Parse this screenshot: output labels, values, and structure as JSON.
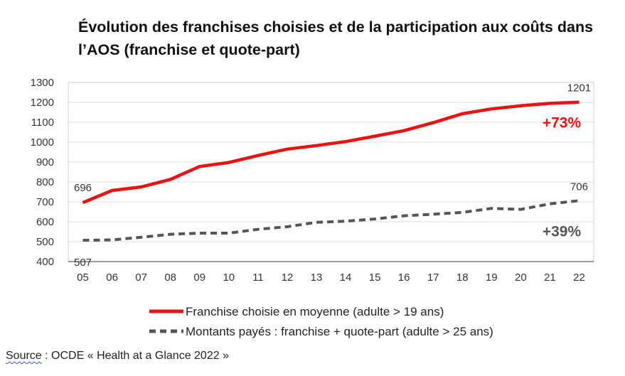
{
  "title": "Évolution des franchises choisies et de la participation aux coûts dans l’AOS (franchise et quote-part)",
  "source": {
    "label": "Source",
    "separator": " : ",
    "text": "OCDE « Health at a Glance 2022 »"
  },
  "chart_data": {
    "type": "line",
    "categories": [
      "05",
      "06",
      "07",
      "08",
      "09",
      "10",
      "11",
      "12",
      "13",
      "14",
      "15",
      "16",
      "17",
      "18",
      "19",
      "20",
      "21",
      "22"
    ],
    "ylim": [
      400,
      1300
    ],
    "yticks": [
      400,
      500,
      600,
      700,
      800,
      900,
      1000,
      1100,
      1200,
      1300
    ],
    "grid": true,
    "series": [
      {
        "name": "Franchise choisie en moyenne (adulte > 19 ans)",
        "color": "#ee1111",
        "style": "solid",
        "values": [
          696,
          757,
          775,
          813,
          878,
          898,
          933,
          965,
          983,
          1003,
          1030,
          1058,
          1098,
          1143,
          1167,
          1183,
          1195,
          1201
        ],
        "first_label": "696",
        "last_label": "1201",
        "change": "+73%"
      },
      {
        "name": "Montants payés : franchise + quote-part (adulte > 25 ans)",
        "color": "#555555",
        "style": "dashed",
        "values": [
          507,
          509,
          522,
          537,
          543,
          543,
          562,
          575,
          597,
          603,
          614,
          630,
          638,
          647,
          667,
          662,
          690,
          706
        ],
        "first_label": "507",
        "last_label": "706",
        "change": "+39%"
      }
    ]
  }
}
